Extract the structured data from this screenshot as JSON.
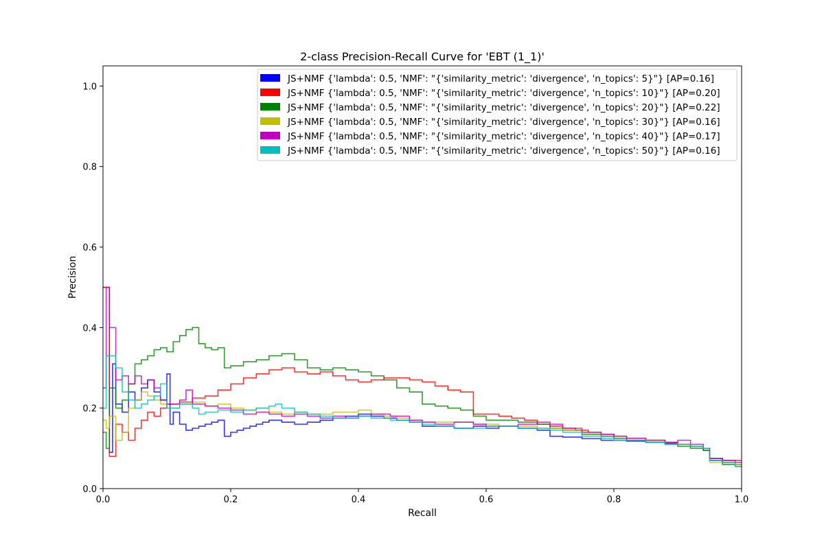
{
  "chart_data": {
    "type": "line",
    "step": "post",
    "title": "2-class Precision-Recall Curve for 'EBT (1_1)'",
    "xlabel": "Recall",
    "ylabel": "Precision",
    "xlim": [
      0.0,
      1.0
    ],
    "ylim": [
      0.0,
      1.05
    ],
    "xticks": [
      "0.0",
      "0.2",
      "0.4",
      "0.6",
      "0.8",
      "1.0"
    ],
    "yticks": [
      "0.0",
      "0.2",
      "0.4",
      "0.6",
      "0.8",
      "1.0"
    ],
    "grid": false,
    "legend_position": "upper-right",
    "series": [
      {
        "name": "JS+NMF {'lambda': 0.5, 'NMF': \"{'similarity_metric': 'divergence', 'n_topics': 5}\"} [AP=0.16]",
        "color": "#0000ff",
        "x": [
          0.0,
          0.005,
          0.01,
          0.015,
          0.02,
          0.03,
          0.04,
          0.05,
          0.06,
          0.07,
          0.08,
          0.09,
          0.1,
          0.105,
          0.11,
          0.12,
          0.13,
          0.14,
          0.15,
          0.16,
          0.17,
          0.18,
          0.19,
          0.2,
          0.21,
          0.22,
          0.23,
          0.24,
          0.25,
          0.26,
          0.28,
          0.3,
          0.32,
          0.34,
          0.36,
          0.38,
          0.4,
          0.42,
          0.44,
          0.46,
          0.48,
          0.5,
          0.52,
          0.55,
          0.58,
          0.6,
          0.62,
          0.65,
          0.68,
          0.7,
          0.72,
          0.75,
          0.78,
          0.8,
          0.82,
          0.85,
          0.88,
          0.9,
          0.92,
          0.94,
          0.95,
          0.97,
          0.99,
          1.0
        ],
        "y": [
          0.5,
          0.5,
          0.09,
          0.31,
          0.21,
          0.19,
          0.24,
          0.22,
          0.25,
          0.27,
          0.24,
          0.22,
          0.285,
          0.16,
          0.19,
          0.16,
          0.145,
          0.15,
          0.155,
          0.16,
          0.165,
          0.17,
          0.13,
          0.14,
          0.145,
          0.15,
          0.155,
          0.16,
          0.165,
          0.17,
          0.165,
          0.16,
          0.165,
          0.17,
          0.175,
          0.18,
          0.185,
          0.18,
          0.175,
          0.17,
          0.165,
          0.155,
          0.155,
          0.15,
          0.155,
          0.15,
          0.155,
          0.15,
          0.145,
          0.13,
          0.128,
          0.124,
          0.12,
          0.12,
          0.118,
          0.115,
          0.113,
          0.11,
          0.105,
          0.095,
          0.07,
          0.065,
          0.06,
          0.06
        ]
      },
      {
        "name": "JS+NMF {'lambda': 0.5, 'NMF': \"{'similarity_metric': 'divergence', 'n_topics': 10}\"} [AP=0.20]",
        "color": "#ff0000",
        "x": [
          0.0,
          0.005,
          0.01,
          0.02,
          0.03,
          0.04,
          0.05,
          0.06,
          0.07,
          0.08,
          0.09,
          0.1,
          0.12,
          0.14,
          0.16,
          0.18,
          0.2,
          0.22,
          0.24,
          0.26,
          0.28,
          0.3,
          0.32,
          0.34,
          0.36,
          0.38,
          0.4,
          0.42,
          0.44,
          0.46,
          0.48,
          0.5,
          0.52,
          0.54,
          0.56,
          0.58,
          0.6,
          0.62,
          0.64,
          0.66,
          0.68,
          0.7,
          0.72,
          0.74,
          0.76,
          0.78,
          0.8,
          0.82,
          0.85,
          0.88,
          0.9,
          0.92,
          0.94,
          0.95,
          0.97,
          1.0
        ],
        "y": [
          0.5,
          0.5,
          0.08,
          0.16,
          0.14,
          0.12,
          0.15,
          0.17,
          0.19,
          0.18,
          0.2,
          0.21,
          0.215,
          0.225,
          0.23,
          0.245,
          0.26,
          0.275,
          0.285,
          0.295,
          0.3,
          0.29,
          0.285,
          0.29,
          0.28,
          0.27,
          0.265,
          0.27,
          0.275,
          0.275,
          0.27,
          0.265,
          0.255,
          0.245,
          0.24,
          0.185,
          0.185,
          0.18,
          0.175,
          0.17,
          0.16,
          0.155,
          0.15,
          0.145,
          0.14,
          0.135,
          0.13,
          0.125,
          0.12,
          0.115,
          0.11,
          0.105,
          0.1,
          0.075,
          0.07,
          0.07
        ]
      },
      {
        "name": "JS+NMF {'lambda': 0.5, 'NMF': \"{'similarity_metric': 'divergence', 'n_topics': 20}\"} [AP=0.22]",
        "color": "#008000",
        "x": [
          0.0,
          0.005,
          0.01,
          0.02,
          0.03,
          0.04,
          0.05,
          0.06,
          0.07,
          0.08,
          0.09,
          0.1,
          0.11,
          0.12,
          0.13,
          0.14,
          0.15,
          0.16,
          0.17,
          0.18,
          0.19,
          0.2,
          0.22,
          0.24,
          0.26,
          0.28,
          0.3,
          0.32,
          0.34,
          0.36,
          0.38,
          0.4,
          0.42,
          0.44,
          0.46,
          0.48,
          0.5,
          0.52,
          0.54,
          0.56,
          0.58,
          0.6,
          0.62,
          0.65,
          0.68,
          0.7,
          0.72,
          0.75,
          0.78,
          0.8,
          0.82,
          0.85,
          0.88,
          0.9,
          0.92,
          0.94,
          0.95,
          0.97,
          0.99,
          1.0
        ],
        "y": [
          0.14,
          0.1,
          0.25,
          0.2,
          0.22,
          0.26,
          0.31,
          0.32,
          0.33,
          0.345,
          0.35,
          0.34,
          0.365,
          0.38,
          0.395,
          0.4,
          0.36,
          0.35,
          0.345,
          0.35,
          0.3,
          0.305,
          0.315,
          0.32,
          0.33,
          0.335,
          0.32,
          0.3,
          0.295,
          0.3,
          0.295,
          0.29,
          0.28,
          0.27,
          0.25,
          0.24,
          0.21,
          0.205,
          0.2,
          0.195,
          0.18,
          0.17,
          0.17,
          0.165,
          0.16,
          0.15,
          0.145,
          0.135,
          0.13,
          0.125,
          0.12,
          0.115,
          0.11,
          0.105,
          0.1,
          0.095,
          0.075,
          0.06,
          0.055,
          0.055
        ]
      },
      {
        "name": "JS+NMF {'lambda': 0.5, 'NMF': \"{'similarity_metric': 'divergence', 'n_topics': 30}\"} [AP=0.16]",
        "color": "#bfbf00",
        "x": [
          0.0,
          0.005,
          0.01,
          0.02,
          0.03,
          0.04,
          0.05,
          0.06,
          0.07,
          0.08,
          0.09,
          0.1,
          0.12,
          0.14,
          0.16,
          0.18,
          0.2,
          0.22,
          0.24,
          0.26,
          0.28,
          0.3,
          0.32,
          0.34,
          0.36,
          0.38,
          0.4,
          0.42,
          0.44,
          0.46,
          0.48,
          0.5,
          0.52,
          0.55,
          0.58,
          0.6,
          0.62,
          0.65,
          0.68,
          0.7,
          0.72,
          0.75,
          0.78,
          0.8,
          0.82,
          0.85,
          0.88,
          0.9,
          0.92,
          0.94,
          0.95,
          0.97,
          0.99,
          1.0
        ],
        "y": [
          0.17,
          0.15,
          0.18,
          0.12,
          0.14,
          0.2,
          0.22,
          0.24,
          0.23,
          0.22,
          0.21,
          0.2,
          0.21,
          0.215,
          0.205,
          0.21,
          0.2,
          0.195,
          0.2,
          0.19,
          0.185,
          0.19,
          0.185,
          0.185,
          0.19,
          0.19,
          0.195,
          0.185,
          0.18,
          0.175,
          0.17,
          0.165,
          0.165,
          0.165,
          0.16,
          0.16,
          0.155,
          0.155,
          0.15,
          0.15,
          0.145,
          0.14,
          0.135,
          0.13,
          0.125,
          0.12,
          0.115,
          0.11,
          0.105,
          0.1,
          0.065,
          0.065,
          0.06,
          0.06
        ]
      },
      {
        "name": "JS+NMF {'lambda': 0.5, 'NMF': \"{'similarity_metric': 'divergence', 'n_topics': 40}\"} [AP=0.17]",
        "color": "#bf00bf",
        "x": [
          0.0,
          0.005,
          0.01,
          0.02,
          0.03,
          0.04,
          0.05,
          0.06,
          0.07,
          0.08,
          0.09,
          0.1,
          0.12,
          0.13,
          0.14,
          0.16,
          0.18,
          0.2,
          0.22,
          0.24,
          0.26,
          0.28,
          0.3,
          0.32,
          0.34,
          0.36,
          0.38,
          0.4,
          0.42,
          0.45,
          0.48,
          0.5,
          0.52,
          0.55,
          0.58,
          0.6,
          0.62,
          0.65,
          0.68,
          0.7,
          0.72,
          0.75,
          0.78,
          0.8,
          0.82,
          0.85,
          0.88,
          0.9,
          0.92,
          0.94,
          0.95,
          0.97,
          0.99,
          1.0
        ],
        "y": [
          0.25,
          0.5,
          0.4,
          0.27,
          0.28,
          0.26,
          0.28,
          0.26,
          0.27,
          0.25,
          0.22,
          0.21,
          0.22,
          0.245,
          0.21,
          0.205,
          0.2,
          0.195,
          0.185,
          0.19,
          0.185,
          0.18,
          0.185,
          0.18,
          0.175,
          0.18,
          0.175,
          0.18,
          0.185,
          0.18,
          0.17,
          0.165,
          0.16,
          0.165,
          0.16,
          0.155,
          0.155,
          0.16,
          0.165,
          0.16,
          0.15,
          0.14,
          0.135,
          0.13,
          0.125,
          0.12,
          0.115,
          0.12,
          0.11,
          0.1,
          0.075,
          0.07,
          0.065,
          0.065
        ]
      },
      {
        "name": "JS+NMF {'lambda': 0.5, 'NMF': \"{'similarity_metric': 'divergence', 'n_topics': 50}\"} [AP=0.16]",
        "color": "#00bfbf",
        "x": [
          0.0,
          0.005,
          0.01,
          0.02,
          0.03,
          0.04,
          0.05,
          0.06,
          0.07,
          0.08,
          0.09,
          0.1,
          0.12,
          0.14,
          0.15,
          0.16,
          0.18,
          0.2,
          0.22,
          0.24,
          0.26,
          0.27,
          0.28,
          0.3,
          0.32,
          0.34,
          0.36,
          0.38,
          0.4,
          0.42,
          0.45,
          0.48,
          0.5,
          0.52,
          0.55,
          0.58,
          0.6,
          0.62,
          0.65,
          0.68,
          0.7,
          0.72,
          0.75,
          0.78,
          0.8,
          0.82,
          0.85,
          0.88,
          0.9,
          0.92,
          0.94,
          0.95,
          0.97,
          0.99,
          1.0
        ],
        "y": [
          0.2,
          0.33,
          0.33,
          0.3,
          0.24,
          0.22,
          0.2,
          0.21,
          0.22,
          0.23,
          0.26,
          0.2,
          0.21,
          0.2,
          0.185,
          0.19,
          0.195,
          0.19,
          0.195,
          0.2,
          0.205,
          0.21,
          0.2,
          0.19,
          0.185,
          0.18,
          0.175,
          0.175,
          0.18,
          0.175,
          0.17,
          0.165,
          0.16,
          0.155,
          0.15,
          0.15,
          0.155,
          0.155,
          0.15,
          0.15,
          0.145,
          0.14,
          0.13,
          0.125,
          0.12,
          0.12,
          0.115,
          0.11,
          0.11,
          0.105,
          0.1,
          0.07,
          0.065,
          0.055,
          0.055
        ]
      }
    ]
  }
}
